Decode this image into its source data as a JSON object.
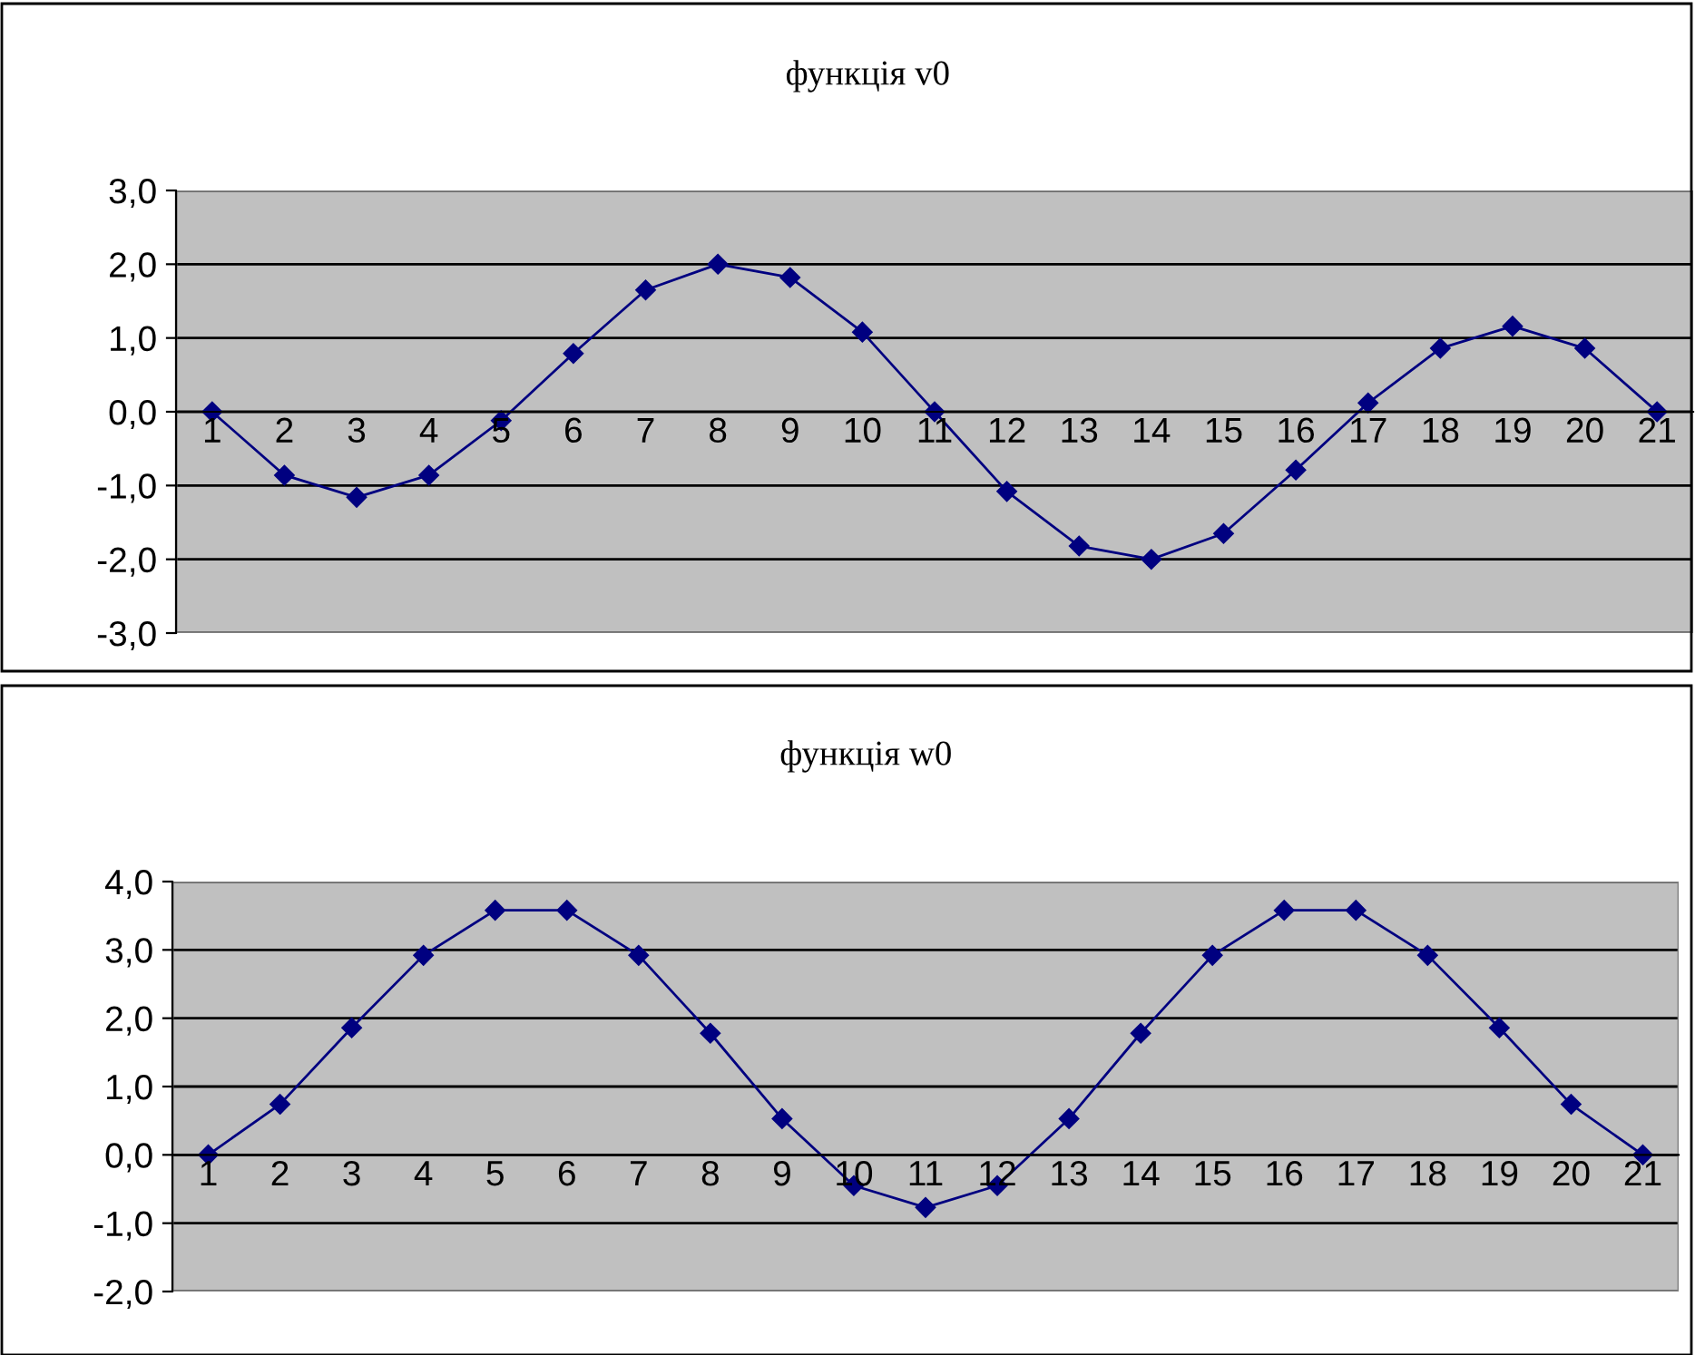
{
  "chart_data": [
    {
      "type": "line",
      "title": "функція v0",
      "categories": [
        "1",
        "2",
        "3",
        "4",
        "5",
        "6",
        "7",
        "8",
        "9",
        "10",
        "11",
        "12",
        "13",
        "14",
        "15",
        "16",
        "17",
        "18",
        "19",
        "20",
        "21"
      ],
      "series": [
        {
          "color": "#000080",
          "values": [
            0,
            -0.86,
            -1.16,
            -0.86,
            -0.12,
            0.79,
            1.65,
            2.0,
            1.82,
            1.08,
            0,
            -1.08,
            -1.82,
            -2.0,
            -1.65,
            -0.79,
            0.12,
            0.86,
            1.16,
            0.86,
            0
          ]
        }
      ],
      "ylim": [
        -3,
        3
      ],
      "yticks": [
        {
          "value": -3,
          "label": "-3,0"
        },
        {
          "value": -2,
          "label": "-2,0"
        },
        {
          "value": -1,
          "label": "-1,0"
        },
        {
          "value": 0,
          "label": "0,0"
        },
        {
          "value": 1,
          "label": "1,0"
        },
        {
          "value": 2,
          "label": "2,0"
        },
        {
          "value": 3,
          "label": "3,0"
        }
      ],
      "grid": "y",
      "marker": "diamond",
      "line_style": "solid",
      "legend": false
    },
    {
      "type": "line",
      "title": "функція w0",
      "categories": [
        "1",
        "2",
        "3",
        "4",
        "5",
        "6",
        "7",
        "8",
        "9",
        "10",
        "11",
        "12",
        "13",
        "14",
        "15",
        "16",
        "17",
        "18",
        "19",
        "20",
        "21"
      ],
      "series": [
        {
          "color": "#000080",
          "values": [
            0,
            0.74,
            1.86,
            2.92,
            3.58,
            3.58,
            2.92,
            1.78,
            0.53,
            -0.45,
            -0.77,
            -0.45,
            0.53,
            1.78,
            2.92,
            3.58,
            3.58,
            2.92,
            1.86,
            0.74,
            0
          ]
        }
      ],
      "ylim": [
        -2,
        4
      ],
      "yticks": [
        {
          "value": -2,
          "label": "-2,0"
        },
        {
          "value": -1,
          "label": "-1,0"
        },
        {
          "value": 0,
          "label": "0,0"
        },
        {
          "value": 1,
          "label": "1,0"
        },
        {
          "value": 2,
          "label": "2,0"
        },
        {
          "value": 3,
          "label": "3,0"
        },
        {
          "value": 4,
          "label": "4,0"
        }
      ],
      "grid": "y",
      "marker": "diamond",
      "line_style": "solid",
      "legend": false
    }
  ]
}
